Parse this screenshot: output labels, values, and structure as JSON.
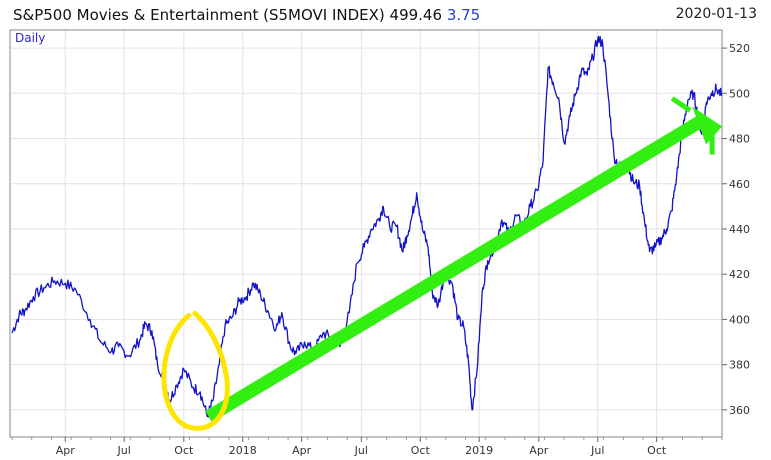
{
  "header": {
    "title": "S&P500 Movies & Entertainment (S5MOVI INDEX) 499.46",
    "change": "3.75",
    "date": "2020-01-13"
  },
  "chart_data": {
    "type": "line",
    "period_label": "Daily",
    "title": "S&P500 Movies & Entertainment (S5MOVI INDEX) 499.46",
    "xlabel": "",
    "ylabel": "",
    "ylim": [
      348,
      528
    ],
    "grid": true,
    "y_ticks": [
      360,
      380,
      400,
      420,
      440,
      460,
      480,
      500,
      520
    ],
    "x_ticks": [
      {
        "label": "Apr",
        "t": 0.075
      },
      {
        "label": "Jul",
        "t": 0.158
      },
      {
        "label": "Oct",
        "t": 0.242
      },
      {
        "label": "2018",
        "t": 0.325
      },
      {
        "label": "Apr",
        "t": 0.408
      },
      {
        "label": "Jul",
        "t": 0.492
      },
      {
        "label": "Oct",
        "t": 0.575
      },
      {
        "label": "2019",
        "t": 0.658
      },
      {
        "label": "Apr",
        "t": 0.742
      },
      {
        "label": "Jul",
        "t": 0.825
      },
      {
        "label": "Oct",
        "t": 0.908
      }
    ],
    "series": [
      {
        "name": "",
        "color": "#1212c8",
        "points": [
          [
            0.0,
            394
          ],
          [
            0.01,
            402
          ],
          [
            0.018,
            404
          ],
          [
            0.03,
            410
          ],
          [
            0.045,
            414
          ],
          [
            0.06,
            417
          ],
          [
            0.075,
            416
          ],
          [
            0.09,
            413
          ],
          [
            0.11,
            400
          ],
          [
            0.125,
            390
          ],
          [
            0.14,
            386
          ],
          [
            0.15,
            388
          ],
          [
            0.165,
            384
          ],
          [
            0.18,
            391
          ],
          [
            0.188,
            398
          ],
          [
            0.197,
            395
          ],
          [
            0.205,
            380
          ],
          [
            0.215,
            374
          ],
          [
            0.222,
            364
          ],
          [
            0.232,
            371
          ],
          [
            0.242,
            378
          ],
          [
            0.255,
            370
          ],
          [
            0.265,
            368
          ],
          [
            0.275,
            357
          ],
          [
            0.283,
            364
          ],
          [
            0.292,
            380
          ],
          [
            0.3,
            397
          ],
          [
            0.31,
            401
          ],
          [
            0.32,
            408
          ],
          [
            0.33,
            410
          ],
          [
            0.34,
            416
          ],
          [
            0.35,
            411
          ],
          [
            0.36,
            404
          ],
          [
            0.372,
            396
          ],
          [
            0.38,
            403
          ],
          [
            0.392,
            388
          ],
          [
            0.4,
            385
          ],
          [
            0.412,
            390
          ],
          [
            0.425,
            386
          ],
          [
            0.438,
            394
          ],
          [
            0.45,
            392
          ],
          [
            0.462,
            388
          ],
          [
            0.475,
            403
          ],
          [
            0.486,
            425
          ],
          [
            0.496,
            432
          ],
          [
            0.506,
            440
          ],
          [
            0.516,
            444
          ],
          [
            0.523,
            450
          ],
          [
            0.532,
            441
          ],
          [
            0.542,
            441
          ],
          [
            0.55,
            430
          ],
          [
            0.556,
            437
          ],
          [
            0.563,
            445
          ],
          [
            0.57,
            456
          ],
          [
            0.578,
            440
          ],
          [
            0.586,
            432
          ],
          [
            0.592,
            412
          ],
          [
            0.6,
            406
          ],
          [
            0.61,
            421
          ],
          [
            0.62,
            416
          ],
          [
            0.628,
            400
          ],
          [
            0.636,
            397
          ],
          [
            0.643,
            381
          ],
          [
            0.648,
            360
          ],
          [
            0.655,
            378
          ],
          [
            0.663,
            414
          ],
          [
            0.67,
            426
          ],
          [
            0.68,
            433
          ],
          [
            0.69,
            444
          ],
          [
            0.7,
            438
          ],
          [
            0.71,
            446
          ],
          [
            0.72,
            441
          ],
          [
            0.73,
            450
          ],
          [
            0.74,
            457
          ],
          [
            0.748,
            470
          ],
          [
            0.755,
            511
          ],
          [
            0.762,
            505
          ],
          [
            0.77,
            498
          ],
          [
            0.778,
            478
          ],
          [
            0.786,
            490
          ],
          [
            0.794,
            500
          ],
          [
            0.802,
            510
          ],
          [
            0.81,
            508
          ],
          [
            0.818,
            516
          ],
          [
            0.825,
            524
          ],
          [
            0.832,
            522
          ],
          [
            0.84,
            498
          ],
          [
            0.848,
            472
          ],
          [
            0.857,
            467
          ],
          [
            0.867,
            468
          ],
          [
            0.875,
            461
          ],
          [
            0.884,
            459
          ],
          [
            0.891,
            443
          ],
          [
            0.898,
            430
          ],
          [
            0.906,
            432
          ],
          [
            0.915,
            436
          ],
          [
            0.922,
            440
          ],
          [
            0.929,
            448
          ],
          [
            0.936,
            463
          ],
          [
            0.944,
            483
          ],
          [
            0.952,
            497
          ],
          [
            0.96,
            500
          ],
          [
            0.966,
            490
          ],
          [
            0.972,
            482
          ],
          [
            0.978,
            496
          ],
          [
            0.985,
            500
          ],
          [
            0.992,
            502
          ],
          [
            1.0,
            499
          ]
        ]
      }
    ],
    "annotations": {
      "arrow_color": "#33ee11",
      "ellipse_color": "#ffe400"
    }
  }
}
